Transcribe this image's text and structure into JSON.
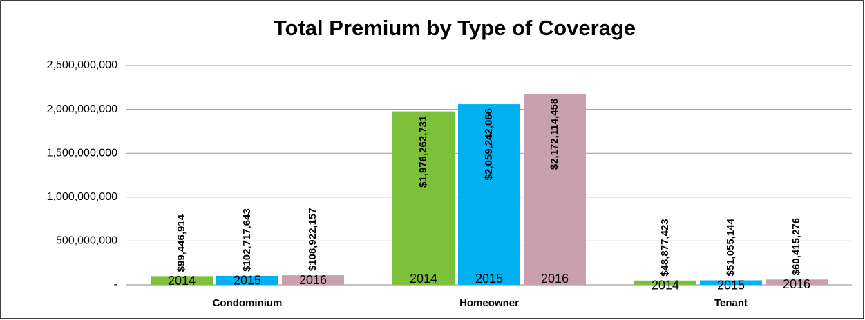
{
  "chart_data": {
    "type": "bar",
    "title": "Total Premium by Type of Coverage",
    "categories": [
      "Condominium",
      "Homeowner",
      "Tenant"
    ],
    "series": [
      {
        "name": "2014",
        "color": "#7dc03a",
        "values": [
          99446914,
          1976262731,
          48877423
        ],
        "value_labels": [
          "$99,446,914",
          "$1,976,262,731",
          "$48,877,423"
        ]
      },
      {
        "name": "2015",
        "color": "#00b0f0",
        "values": [
          102717643,
          2059242066,
          51055144
        ],
        "value_labels": [
          "$102,717,643",
          "$2,059,242,066",
          "$51,055,144"
        ]
      },
      {
        "name": "2016",
        "color": "#c9a0ad",
        "values": [
          108922157,
          2172114458,
          60415276
        ],
        "value_labels": [
          "$108,922,157",
          "$2,172,114,458",
          "$60,415,276"
        ]
      }
    ],
    "ylim": [
      0,
      2500000000
    ],
    "yticks": [
      {
        "value": 0,
        "label": "-"
      },
      {
        "value": 500000000,
        "label": "500,000,000"
      },
      {
        "value": 1000000000,
        "label": "1,000,000,000"
      },
      {
        "value": 1500000000,
        "label": "1,500,000,000"
      },
      {
        "value": 2000000000,
        "label": "2,000,000,000"
      },
      {
        "value": 2500000000,
        "label": "2,500,000,000"
      }
    ],
    "grid": true
  }
}
